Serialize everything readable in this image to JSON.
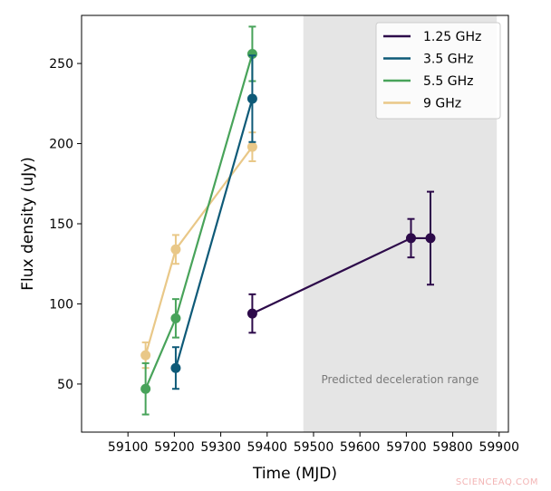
{
  "chart_data": {
    "type": "line",
    "xlabel": "Time (MJD)",
    "ylabel": "Flux density (uJy)",
    "xlim": [
      59000,
      59920
    ],
    "ylim": [
      20,
      280
    ],
    "xticks": [
      59100,
      59200,
      59300,
      59400,
      59500,
      59600,
      59700,
      59800,
      59900
    ],
    "yticks": [
      50,
      100,
      150,
      200,
      250
    ],
    "grid": false,
    "legend_position": "top-right",
    "shaded_region": {
      "x": [
        59478,
        59895
      ],
      "label": "Predicted deceleration range",
      "color": "#e5e5e5"
    },
    "series": [
      {
        "name": "1.25 GHz",
        "color": "#2d0a4a",
        "points": [
          {
            "x": 59368,
            "y": 94,
            "err": 12
          },
          {
            "x": 59710,
            "y": 141,
            "err": 12
          },
          {
            "x": 59752,
            "y": 141,
            "err": 29
          }
        ]
      },
      {
        "name": "3.5 GHz",
        "color": "#0e5a78",
        "points": [
          {
            "x": 59203,
            "y": 60,
            "err": 13
          },
          {
            "x": 59368,
            "y": 228,
            "err": 27
          }
        ]
      },
      {
        "name": "5.5 GHz",
        "color": "#48a35a",
        "points": [
          {
            "x": 59138,
            "y": 47,
            "err": 16
          },
          {
            "x": 59203,
            "y": 91,
            "err": 12
          },
          {
            "x": 59368,
            "y": 256,
            "err": 17
          }
        ]
      },
      {
        "name": "9 GHz",
        "color": "#e9c888",
        "points": [
          {
            "x": 59138,
            "y": 68,
            "err": 8
          },
          {
            "x": 59203,
            "y": 134,
            "err": 9
          },
          {
            "x": 59368,
            "y": 198,
            "err": 9
          }
        ]
      }
    ]
  },
  "watermark": "SCIENCEAQ.COM"
}
